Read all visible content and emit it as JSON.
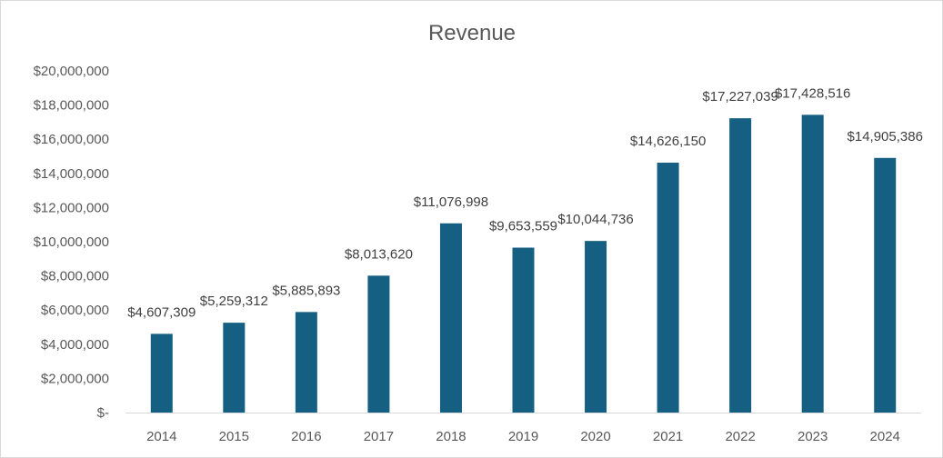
{
  "chart_data": {
    "type": "bar",
    "title": "Revenue",
    "xlabel": "",
    "ylabel": "",
    "categories": [
      "2014",
      "2015",
      "2016",
      "2017",
      "2018",
      "2019",
      "2020",
      "2021",
      "2022",
      "2023",
      "2024"
    ],
    "values": [
      4607309,
      5259312,
      5885893,
      8013620,
      11076998,
      9653559,
      10044736,
      14626150,
      17227039,
      17428516,
      14905386
    ],
    "data_labels": [
      "$4,607,309",
      "$5,259,312",
      "$5,885,893",
      "$8,013,620",
      "$11,076,998",
      "$9,653,559",
      "$10,044,736",
      "$14,626,150",
      "$17,227,039",
      "$17,428,516",
      "$14,905,386"
    ],
    "ylim": [
      0,
      20000000
    ],
    "yticks": [
      0,
      2000000,
      4000000,
      6000000,
      8000000,
      10000000,
      12000000,
      14000000,
      16000000,
      18000000,
      20000000
    ],
    "ytick_labels": [
      "$-",
      "$2,000,000",
      "$4,000,000",
      "$6,000,000",
      "$8,000,000",
      "$10,000,000",
      "$12,000,000",
      "$14,000,000",
      "$16,000,000",
      "$18,000,000",
      "$20,000,000"
    ],
    "grid": false,
    "legend": "none",
    "bar_color": "#156082"
  }
}
